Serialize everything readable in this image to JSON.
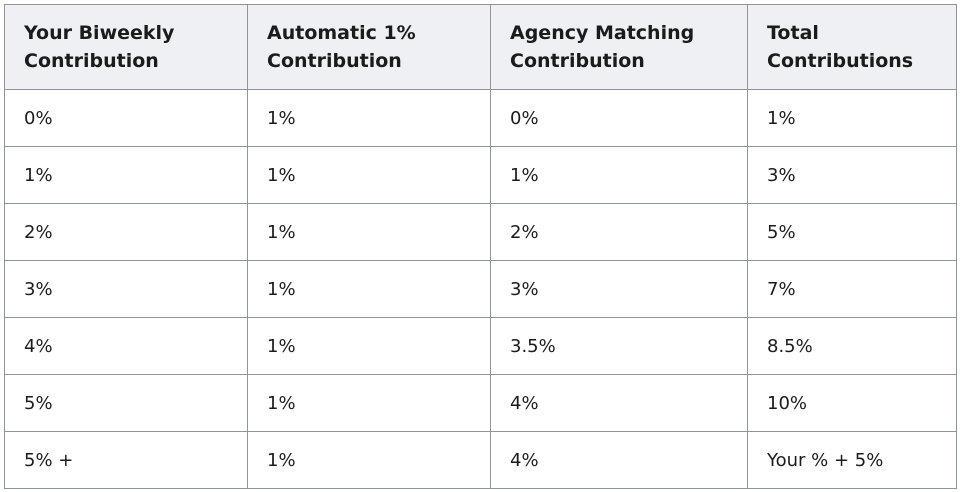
{
  "table": {
    "header": [
      "Your Biweekly\nContribution",
      "Automatic 1%\nContribution",
      "Agency Matching\nContribution",
      "Total\nContributions"
    ],
    "rows": [
      [
        "0%",
        "1%",
        "0%",
        "1%"
      ],
      [
        "1%",
        "1%",
        "1%",
        "3%"
      ],
      [
        "2%",
        "1%",
        "2%",
        "5%"
      ],
      [
        "3%",
        "1%",
        "3%",
        "7%"
      ],
      [
        "4%",
        "1%",
        "3.5%",
        "8.5%"
      ],
      [
        "5%",
        "1%",
        "4%",
        "10%"
      ],
      [
        "5% +",
        "1%",
        "4%",
        "Your % + 5%"
      ]
    ]
  }
}
